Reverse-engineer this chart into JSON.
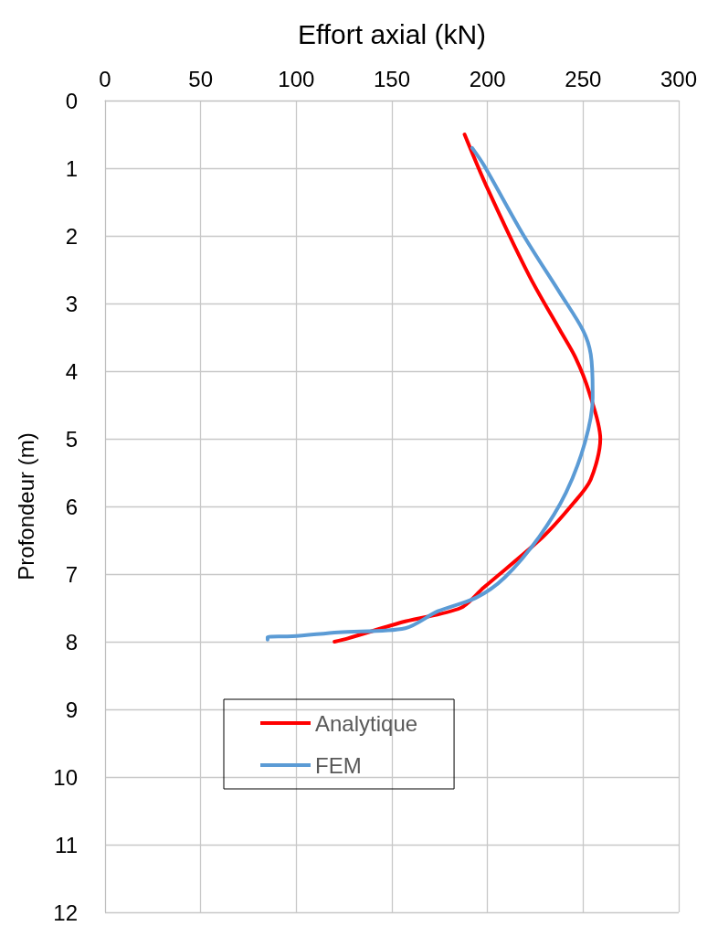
{
  "chart_data": {
    "type": "line",
    "xlabel": "Effort axial (kN)",
    "ylabel": "Profondeur (m)",
    "xlim": [
      0,
      300
    ],
    "xticks": [
      0,
      50,
      100,
      150,
      200,
      250,
      300
    ],
    "ylim": [
      12,
      0
    ],
    "yticks": [
      0,
      1,
      2,
      3,
      4,
      5,
      6,
      7,
      8,
      9,
      10,
      11,
      12
    ],
    "grid": true,
    "legend": "bottom",
    "marker": "none",
    "line_style": "solid",
    "series": [
      {
        "name": "Analytique",
        "color": "#ff0000",
        "x": [
          188,
          200,
          222,
          238,
          246,
          253,
          259,
          254,
          245,
          229,
          198,
          186,
          157,
          127,
          120
        ],
        "values": [
          0.5,
          1.3,
          2.6,
          3.4,
          3.8,
          4.3,
          5.0,
          5.6,
          5.95,
          6.45,
          7.2,
          7.5,
          7.7,
          7.95,
          8.0
        ]
      },
      {
        "name": "FEM",
        "color": "#5b9bd5",
        "x": [
          192,
          198,
          219,
          238,
          250,
          254,
          255,
          255,
          251,
          241,
          227,
          209,
          194,
          174,
          157,
          122,
          98,
          85,
          85
        ],
        "values": [
          0.7,
          0.95,
          2.0,
          2.85,
          3.4,
          3.75,
          4.3,
          4.4,
          5.05,
          5.8,
          6.45,
          7.05,
          7.35,
          7.55,
          7.8,
          7.86,
          7.92,
          7.93,
          7.97
        ]
      }
    ]
  }
}
